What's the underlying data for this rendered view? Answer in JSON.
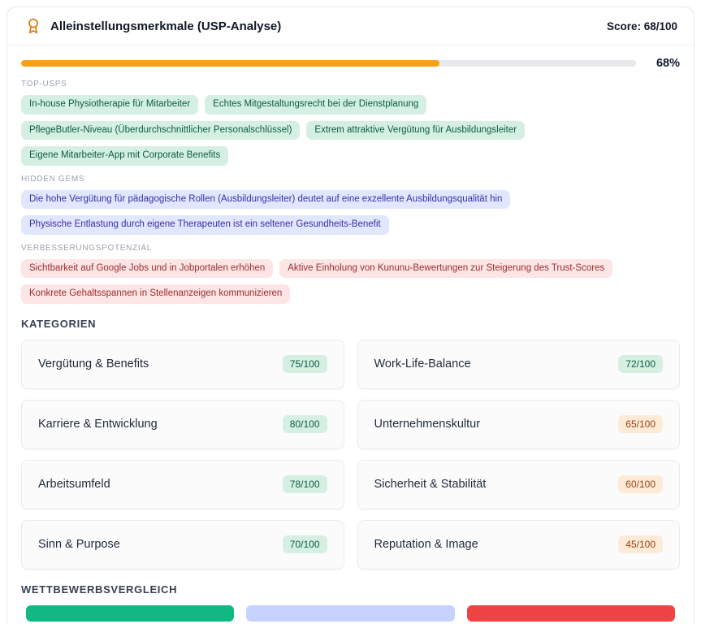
{
  "header": {
    "title": "Alleinstellungsmerkmale (USP-Analyse)",
    "score_label": "Score: 68/100",
    "icon": "award-icon",
    "icon_color": "#d97706"
  },
  "progress": {
    "percent": 68,
    "label": "68%",
    "fill_color": "#f6a11b",
    "track_color": "#e7e9ec"
  },
  "sections": [
    {
      "label": "TOP-USPS",
      "variant": "green",
      "tags": [
        "In-house Physiotherapie für Mitarbeiter",
        "Echtes Mitgestaltungsrecht bei der Dienstplanung",
        "PflegeButler-Niveau (Überdurchschnittlicher Personalschlüssel)",
        "Extrem attraktive Vergütung für Ausbildungsleiter",
        "Eigene Mitarbeiter-App mit Corporate Benefits"
      ]
    },
    {
      "label": "HIDDEN GEMS",
      "variant": "indigo",
      "tags": [
        "Die hohe Vergütung für pädagogische Rollen (Ausbildungsleiter) deutet auf eine exzellente Ausbildungsqualität hin",
        "Physische Entlastung durch eigene Therapeuten ist ein seltener Gesundheits-Benefit"
      ]
    },
    {
      "label": "VERBESSERUNGSPOTENZIAL",
      "variant": "red",
      "tags": [
        "Sichtbarkeit auf Google Jobs und in Jobportalen erhöhen",
        "Aktive Einholung von Kununu-Bewertungen zur Steigerung des Trust-Scores",
        "Konkrete Gehaltsspannen in Stellenanzeigen kommunizieren"
      ]
    }
  ],
  "categories": {
    "heading": "KATEGORIEN",
    "items": [
      {
        "label": "Vergütung & Benefits",
        "score": "75/100",
        "variant": "green"
      },
      {
        "label": "Work-Life-Balance",
        "score": "72/100",
        "variant": "green"
      },
      {
        "label": "Karriere & Entwicklung",
        "score": "80/100",
        "variant": "green"
      },
      {
        "label": "Unternehmenskultur",
        "score": "65/100",
        "variant": "orange"
      },
      {
        "label": "Arbeitsumfeld",
        "score": "78/100",
        "variant": "green"
      },
      {
        "label": "Sicherheit & Stabilität",
        "score": "60/100",
        "variant": "orange"
      },
      {
        "label": "Sinn & Purpose",
        "score": "70/100",
        "variant": "green"
      },
      {
        "label": "Reputation & Image",
        "score": "45/100",
        "variant": "orange"
      }
    ]
  },
  "competitors": {
    "heading": "WETTBEWERBSVERGLEICH",
    "bars": [
      {
        "name": "bar-1",
        "color": "#10b981"
      },
      {
        "name": "bar-2",
        "color": "#c7d2fe"
      },
      {
        "name": "bar-3",
        "color": "#ef4444"
      }
    ]
  }
}
